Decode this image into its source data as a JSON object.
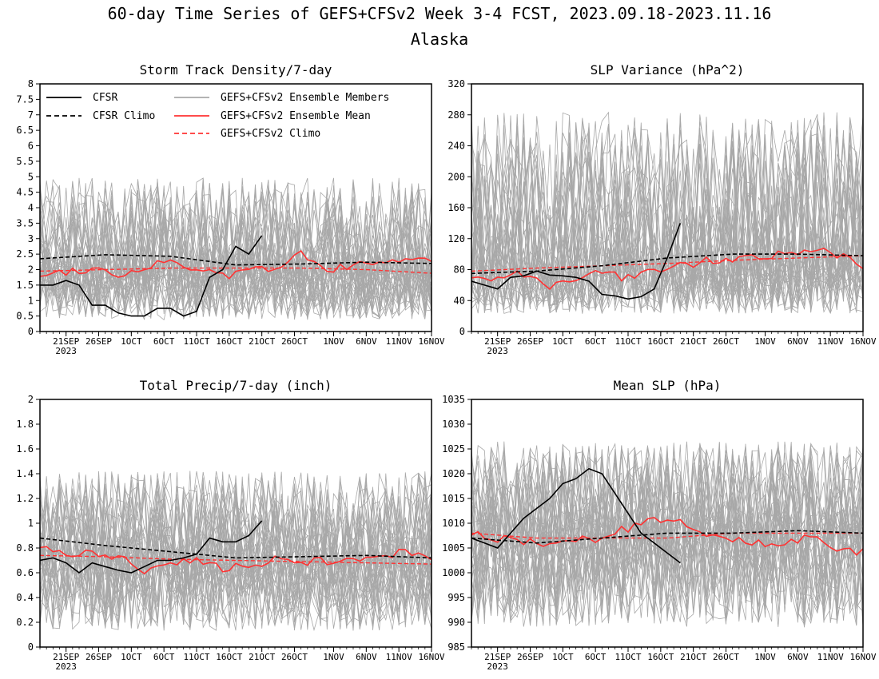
{
  "figure": {
    "title_line1": "60-day Time Series of GEFS+CFSv2 Week 3-4 FCST, 2023.09.18-2023.11.16",
    "title_line2": "Alaska"
  },
  "colors": {
    "cfsr": "#000000",
    "members": "#a8a8a8",
    "ens_mean": "#ff3333",
    "frame": "#000000"
  },
  "legend": {
    "placement": "top-left of first panel",
    "entries": [
      {
        "label": "CFSR",
        "style": "solid",
        "color": "#000000"
      },
      {
        "label": "CFSR Climo",
        "style": "dashed",
        "color": "#000000"
      },
      {
        "label": "GEFS+CFSv2 Ensemble Members",
        "style": "solid",
        "color": "#a8a8a8"
      },
      {
        "label": "GEFS+CFSv2 Ensemble Mean",
        "style": "solid",
        "color": "#ff3333"
      },
      {
        "label": "GEFS+CFSv2 Climo",
        "style": "dashed",
        "color": "#ff3333"
      }
    ]
  },
  "x_axis": {
    "range": [
      "2023-09-17",
      "2023-11-16"
    ],
    "ticks": [
      {
        "date": "2023-09-21",
        "label": "21SEP"
      },
      {
        "date": "2023-09-26",
        "label": "26SEP"
      },
      {
        "date": "2023-10-01",
        "label": "1OCT"
      },
      {
        "date": "2023-10-06",
        "label": "6OCT"
      },
      {
        "date": "2023-10-11",
        "label": "11OCT"
      },
      {
        "date": "2023-10-16",
        "label": "16OCT"
      },
      {
        "date": "2023-10-21",
        "label": "21OCT"
      },
      {
        "date": "2023-10-26",
        "label": "26OCT"
      },
      {
        "date": "2023-11-01",
        "label": "1NOV"
      },
      {
        "date": "2023-11-06",
        "label": "6NOV"
      },
      {
        "date": "2023-11-11",
        "label": "11NOV"
      },
      {
        "date": "2023-11-16",
        "label": "16NOV"
      }
    ],
    "year_label": "2023"
  },
  "chart_data": [
    {
      "type": "line",
      "title": "Storm Track Density/7-day",
      "ylim": [
        0,
        8
      ],
      "yticks": [
        "0",
        "0.5",
        "1",
        "1.5",
        "2",
        "2.5",
        "3",
        "3.5",
        "4",
        "4.5",
        "5",
        "5.5",
        "6",
        "6.5",
        "7",
        "7.5",
        "8"
      ],
      "member_spread": {
        "count": 40,
        "center": 1.9,
        "low": 0.3,
        "high": 5.5
      },
      "series": [
        {
          "name": "CFSR",
          "x": [
            "2023-09-17",
            "2023-09-19",
            "2023-09-21",
            "2023-09-23",
            "2023-09-25",
            "2023-09-27",
            "2023-09-29",
            "2023-10-01",
            "2023-10-03",
            "2023-10-05",
            "2023-10-07",
            "2023-10-09",
            "2023-10-11",
            "2023-10-13",
            "2023-10-15",
            "2023-10-17",
            "2023-10-19",
            "2023-10-21"
          ],
          "y": [
            1.5,
            1.5,
            1.65,
            1.5,
            0.85,
            0.85,
            0.6,
            0.5,
            0.5,
            0.75,
            0.75,
            0.5,
            0.65,
            1.75,
            2.0,
            2.75,
            2.5,
            3.1
          ]
        },
        {
          "name": "CFSR Climo",
          "x": [
            "2023-09-17",
            "2023-09-27",
            "2023-10-07",
            "2023-10-17",
            "2023-10-27",
            "2023-11-06",
            "2023-11-16"
          ],
          "y": [
            2.35,
            2.48,
            2.43,
            2.15,
            2.18,
            2.24,
            2.2
          ]
        },
        {
          "name": "GEFS+CFSv2 Ensemble Mean",
          "x": [
            "2023-09-17",
            "2023-09-21",
            "2023-09-25",
            "2023-09-29",
            "2023-10-03",
            "2023-10-07",
            "2023-10-11",
            "2023-10-15",
            "2023-10-19",
            "2023-10-23",
            "2023-10-27",
            "2023-10-31",
            "2023-11-04",
            "2023-11-08",
            "2023-11-12",
            "2023-11-16"
          ],
          "y": [
            1.85,
            1.95,
            2.05,
            1.8,
            2.1,
            2.3,
            2.0,
            1.75,
            2.05,
            1.95,
            2.6,
            2.0,
            2.1,
            2.2,
            2.35,
            2.2
          ]
        },
        {
          "name": "GEFS+CFSv2 Climo",
          "x": [
            "2023-09-17",
            "2023-09-27",
            "2023-10-07",
            "2023-10-17",
            "2023-10-27",
            "2023-11-06",
            "2023-11-16"
          ],
          "y": [
            1.95,
            2.0,
            2.05,
            2.05,
            2.05,
            2.0,
            1.88
          ]
        }
      ]
    },
    {
      "type": "line",
      "title": "SLP Variance (hPa^2)",
      "ylim": [
        0,
        320
      ],
      "yticks": [
        "0",
        "40",
        "80",
        "120",
        "160",
        "200",
        "240",
        "280",
        "320"
      ],
      "member_spread": {
        "count": 40,
        "center": 80,
        "low": 20,
        "high": 320
      },
      "series": [
        {
          "name": "CFSR",
          "x": [
            "2023-09-17",
            "2023-09-19",
            "2023-09-21",
            "2023-09-23",
            "2023-09-25",
            "2023-09-27",
            "2023-09-29",
            "2023-10-01",
            "2023-10-03",
            "2023-10-05",
            "2023-10-07",
            "2023-10-09",
            "2023-10-11",
            "2023-10-13",
            "2023-10-15",
            "2023-10-17",
            "2023-10-19"
          ],
          "y": [
            65,
            60,
            55,
            70,
            72,
            78,
            73,
            72,
            70,
            65,
            48,
            46,
            42,
            45,
            55,
            95,
            140
          ]
        },
        {
          "name": "CFSR Climo",
          "x": [
            "2023-09-17",
            "2023-09-27",
            "2023-10-07",
            "2023-10-17",
            "2023-10-27",
            "2023-11-06",
            "2023-11-16"
          ],
          "y": [
            75,
            78,
            85,
            95,
            100,
            100,
            98
          ]
        },
        {
          "name": "GEFS+CFSv2 Ensemble Mean",
          "x": [
            "2023-09-17",
            "2023-09-21",
            "2023-09-25",
            "2023-09-29",
            "2023-10-03",
            "2023-10-07",
            "2023-10-11",
            "2023-10-15",
            "2023-10-19",
            "2023-10-23",
            "2023-10-27",
            "2023-10-31",
            "2023-11-04",
            "2023-11-08",
            "2023-11-12",
            "2023-11-16"
          ],
          "y": [
            72,
            68,
            75,
            60,
            70,
            75,
            68,
            80,
            85,
            92,
            95,
            98,
            100,
            105,
            100,
            85
          ]
        },
        {
          "name": "GEFS+CFSv2 Climo",
          "x": [
            "2023-09-17",
            "2023-09-27",
            "2023-10-07",
            "2023-10-17",
            "2023-10-27",
            "2023-11-06",
            "2023-11-16"
          ],
          "y": [
            78,
            82,
            85,
            88,
            92,
            95,
            98
          ]
        }
      ]
    },
    {
      "type": "line",
      "title": "Total Precip/7-day (inch)",
      "ylim": [
        0,
        2
      ],
      "yticks": [
        "0",
        "0.2",
        "0.4",
        "0.6",
        "0.8",
        "1",
        "1.2",
        "1.4",
        "1.6",
        "1.8",
        "2"
      ],
      "member_spread": {
        "count": 40,
        "center": 0.7,
        "low": 0.1,
        "high": 1.55
      },
      "series": [
        {
          "name": "CFSR",
          "x": [
            "2023-09-17",
            "2023-09-19",
            "2023-09-21",
            "2023-09-23",
            "2023-09-25",
            "2023-09-27",
            "2023-09-29",
            "2023-10-01",
            "2023-10-03",
            "2023-10-05",
            "2023-10-07",
            "2023-10-09",
            "2023-10-11",
            "2023-10-13",
            "2023-10-15",
            "2023-10-17",
            "2023-10-19",
            "2023-10-21"
          ],
          "y": [
            0.7,
            0.72,
            0.68,
            0.6,
            0.68,
            0.65,
            0.62,
            0.6,
            0.65,
            0.7,
            0.7,
            0.72,
            0.75,
            0.88,
            0.85,
            0.85,
            0.9,
            1.02
          ]
        },
        {
          "name": "CFSR Climo",
          "x": [
            "2023-09-17",
            "2023-09-27",
            "2023-10-07",
            "2023-10-17",
            "2023-10-27",
            "2023-11-06",
            "2023-11-16"
          ],
          "y": [
            0.88,
            0.82,
            0.77,
            0.72,
            0.73,
            0.74,
            0.72
          ]
        },
        {
          "name": "GEFS+CFSv2 Ensemble Mean",
          "x": [
            "2023-09-17",
            "2023-09-21",
            "2023-09-25",
            "2023-09-29",
            "2023-10-03",
            "2023-10-07",
            "2023-10-11",
            "2023-10-15",
            "2023-10-19",
            "2023-10-23",
            "2023-10-27",
            "2023-10-31",
            "2023-11-04",
            "2023-11-08",
            "2023-11-12",
            "2023-11-16"
          ],
          "y": [
            0.82,
            0.75,
            0.76,
            0.72,
            0.62,
            0.68,
            0.72,
            0.64,
            0.65,
            0.7,
            0.68,
            0.7,
            0.72,
            0.7,
            0.78,
            0.7
          ]
        },
        {
          "name": "GEFS+CFSv2 Climo",
          "x": [
            "2023-09-17",
            "2023-09-27",
            "2023-10-07",
            "2023-10-17",
            "2023-10-27",
            "2023-11-06",
            "2023-11-16"
          ],
          "y": [
            0.74,
            0.73,
            0.71,
            0.7,
            0.69,
            0.68,
            0.67
          ]
        }
      ]
    },
    {
      "type": "line",
      "title": "Mean SLP (hPa)",
      "ylim": [
        985,
        1035
      ],
      "yticks": [
        "985",
        "990",
        "995",
        "1000",
        "1005",
        "1010",
        "1015",
        "1020",
        "1025",
        "1030",
        "1035"
      ],
      "member_spread": {
        "count": 40,
        "center": 1007,
        "low": 988,
        "high": 1030
      },
      "series": [
        {
          "name": "CFSR",
          "x": [
            "2023-09-17",
            "2023-09-19",
            "2023-09-21",
            "2023-09-23",
            "2023-09-25",
            "2023-09-27",
            "2023-09-29",
            "2023-10-01",
            "2023-10-03",
            "2023-10-05",
            "2023-10-07",
            "2023-10-09",
            "2023-10-11",
            "2023-10-13",
            "2023-10-15",
            "2023-10-17",
            "2023-10-19"
          ],
          "y": [
            1007,
            1006,
            1005,
            1008,
            1011,
            1013,
            1015,
            1018,
            1019,
            1021,
            1020,
            1016,
            1012,
            1008,
            1006,
            1004,
            1002
          ]
        },
        {
          "name": "CFSR Climo",
          "x": [
            "2023-09-17",
            "2023-09-27",
            "2023-10-07",
            "2023-10-17",
            "2023-10-27",
            "2023-11-06",
            "2023-11-16"
          ],
          "y": [
            1007,
            1006,
            1007,
            1008,
            1008,
            1008.5,
            1008
          ]
        },
        {
          "name": "GEFS+CFSv2 Ensemble Mean",
          "x": [
            "2023-09-17",
            "2023-09-21",
            "2023-09-25",
            "2023-09-29",
            "2023-10-03",
            "2023-10-07",
            "2023-10-11",
            "2023-10-15",
            "2023-10-19",
            "2023-10-23",
            "2023-10-27",
            "2023-10-31",
            "2023-11-04",
            "2023-11-08",
            "2023-11-12",
            "2023-11-16"
          ],
          "y": [
            1008,
            1007,
            1006,
            1006,
            1007,
            1007,
            1009,
            1011,
            1010,
            1008,
            1007,
            1006,
            1006,
            1007,
            1005,
            1004
          ]
        },
        {
          "name": "GEFS+CFSv2 Climo",
          "x": [
            "2023-09-17",
            "2023-09-27",
            "2023-10-07",
            "2023-10-17",
            "2023-10-27",
            "2023-11-06",
            "2023-11-16"
          ],
          "y": [
            1008,
            1007,
            1007,
            1007,
            1008,
            1008,
            1008
          ]
        }
      ]
    }
  ]
}
